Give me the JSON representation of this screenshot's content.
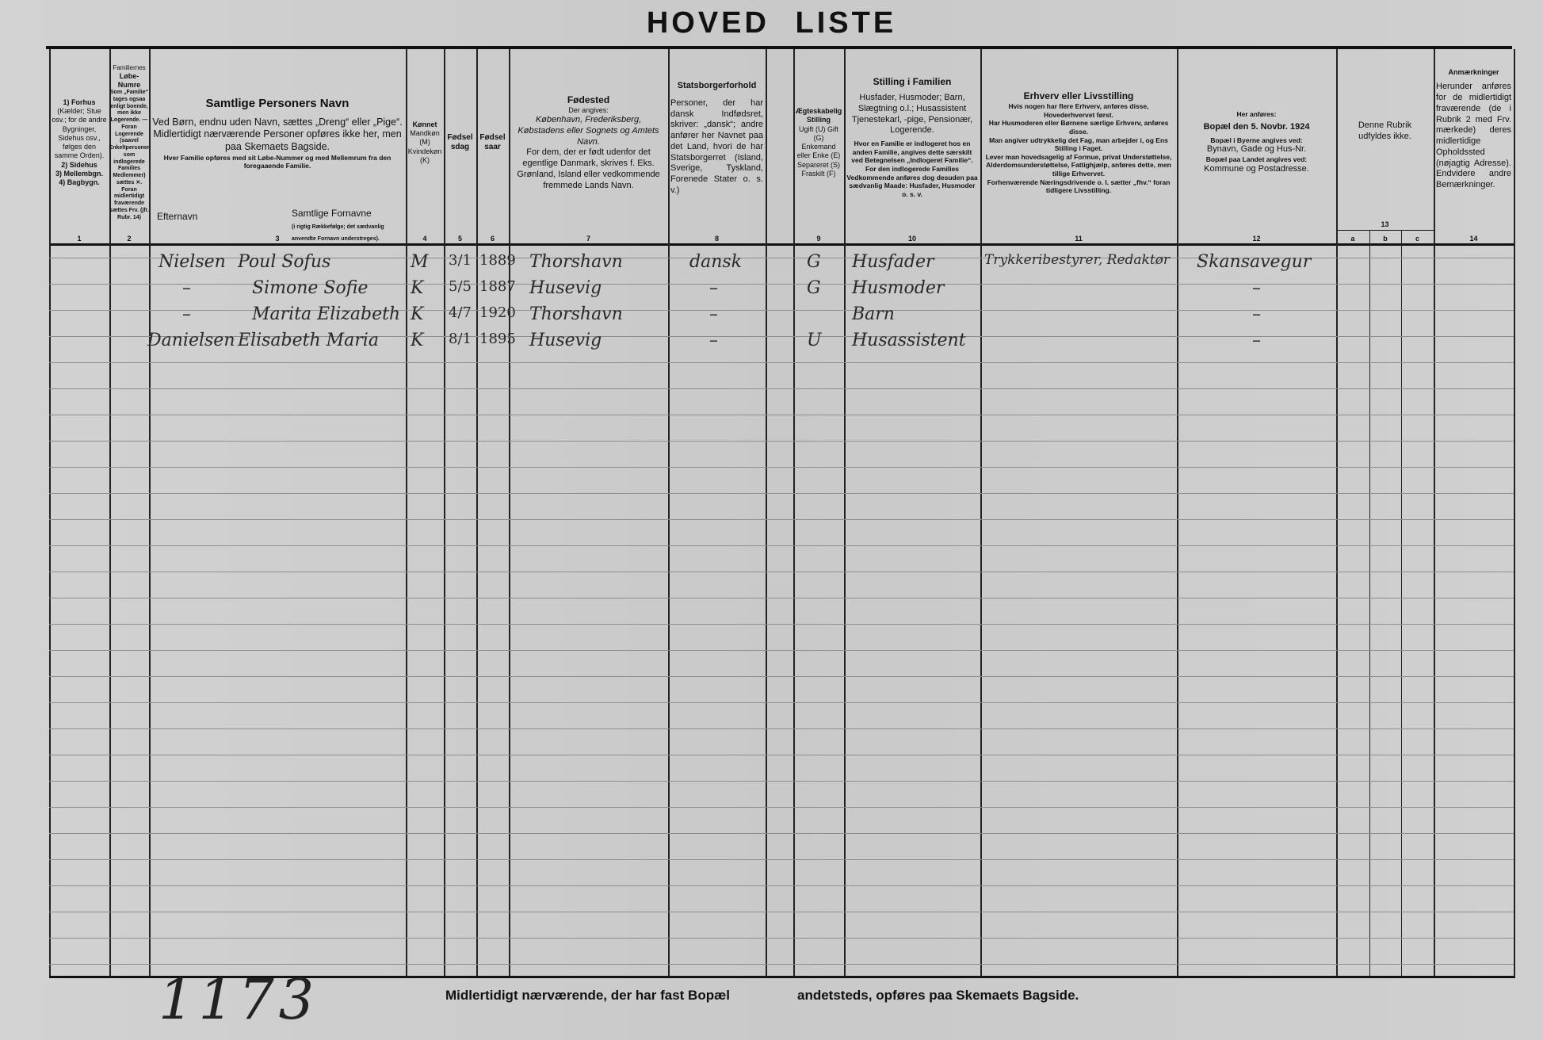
{
  "title": "HOVED LISTE",
  "columns": {
    "c1": {
      "lines": [
        "1) Forhus",
        "(Kælder; Stue osv.; for de andre Bygninger, Sidehus osv., følges den samme Orden).",
        "2) Sidehus",
        "3) Mellembgn.",
        "4) Bagbygn."
      ],
      "num": "1"
    },
    "c2": {
      "head": "Familiernes",
      "title": "Løbe-Numre",
      "text": "Som „Familie“ tages ogsaa enligt boende, men ikke Logerende. — Foran Logerende (saavel Enkeltpersoner som indlogerede Families Medlemmer) sættes ✕. Foran midlertidigt fraværende sættes Frv. (jfr. Rubr. 14)",
      "num": "2"
    },
    "c3": {
      "title": "Samtlige Personers Navn",
      "l1": "Ved Børn, endnu uden Navn, sættes „Dreng“ eller „Pige“.",
      "l2": "Midlertidigt nærværende Personer opføres ikke her, men paa Skemaets Bagside.",
      "l3": "Hver Familie opføres med sit Løbe-Nummer og med Mellemrum fra den foregaaende Familie.",
      "efternavn": "Efternavn",
      "fornavne": "Samtlige Fornavne",
      "fornavne_note": "(i rigtig Rækkefølge; det sædvanlig anvendte Fornavn understreges).",
      "num": "3"
    },
    "c4": {
      "title": "Kønnet",
      "text": "Mandkøn (M) Kvindekøn (K)",
      "num": "4"
    },
    "c5": {
      "title": "Fødselsdag",
      "num": "5"
    },
    "c6": {
      "title": "Fødselsaar",
      "num": "6"
    },
    "c7": {
      "title": "Fødested",
      "l1": "Der angives:",
      "l2": "København, Frederiksberg, Købstadens eller Sognets og Amtets Navn.",
      "l3": "For dem, der er født udenfor det egentlige Danmark, skrives f. Eks. Grønland, Island eller vedkommende fremmede Lands Navn.",
      "num": "7"
    },
    "c8": {
      "title": "Statsborgerforhold",
      "text": "Personer, der har dansk Indfødsret, skriver: „dansk“; andre anfører her Navnet paa det Land, hvori de har Statsborgerret (Island, Sverige, Tyskland, Forenede Stater o. s. v.)",
      "num": "8"
    },
    "c9": {
      "title": "Ægteskabelig Stilling",
      "text": "Ugift (U) Gift (G) Enkemand eller Enke (E) Separeret (S) Fraskilt (F)",
      "num": "9"
    },
    "c10": {
      "title": "Stilling i Familien",
      "l1": "Husfader, Husmoder; Barn, Slægtning o.l.; Husassistent Tjenestekarl, -pige, Pensionær, Logerende.",
      "l2": "Hvor en Familie er indlogeret hos en anden Familie, angives dette særskilt ved Betegnelsen „Indlogeret Familie“. For den indlogerede Families Vedkommende anføres dog desuden paa sædvanlig Maade: Husfader, Husmoder o. s. v.",
      "num": "10"
    },
    "c11": {
      "title": "Erhverv eller Livsstilling",
      "l1": "Hvis nogen har flere Erhverv, anføres disse, Hovederhvervet først.",
      "l2": "Har Husmoderen eller Børnene særlige Erhverv, anføres disse.",
      "l3": "Man angiver udtrykkelig det Fag, man arbejder i, og Ens Stilling i Faget.",
      "l4": "Lever man hovedsagelig af Formue, privat Understøttelse, Alderdomsunderstøttelse, Fattighjælp, anføres dette, men tillige Erhvervet.",
      "l5": "Forhenværende Næringsdrivende o. l. sætter „fhv.“ foran tidligere Livsstilling.",
      "num": "11"
    },
    "c12": {
      "l1": "Her anføres:",
      "title": "Bopæl den 5. Novbr. 1924",
      "l2": "Bopæl i Byerne angives ved:",
      "l3": "Bynavn, Gade og Hus-Nr.",
      "l4": "Bopæl paa Landet angives ved:",
      "l5": "Kommune og Postadresse.",
      "num": "12"
    },
    "c13": {
      "text": "Denne Rubrik udfyldes ikke.",
      "num": "13",
      "a": "a",
      "b": "b",
      "c": "c"
    },
    "c14": {
      "title": "Anmærkninger",
      "text": "Herunder anføres for de midlertidigt fraværende (de i Rubrik 2 med Frv. mærkede) deres midlertidige Opholdssted (nøjagtig Adresse). Endvidere andre Bemærkninger.",
      "num": "14"
    }
  },
  "rows": [
    {
      "efternavn": "Nielsen",
      "fornavne": "Poul Sofus",
      "kon": "M",
      "dag": "3/1",
      "aar": "1889",
      "fodested": "Thorshavn",
      "stats": "dansk",
      "aegt": "G",
      "stilling": "Husfader",
      "erhverv": "Trykkeribestyrer, Redaktør",
      "bopael": "Skansavegur"
    },
    {
      "efternavn": "–",
      "fornavne": "Simone Sofie",
      "kon": "K",
      "dag": "5/5",
      "aar": "1887",
      "fodested": "Husevig",
      "stats": "–",
      "aegt": "G",
      "stilling": "Husmoder",
      "erhverv": "",
      "bopael": "–"
    },
    {
      "efternavn": "–",
      "fornavne": "Marita Elizabeth",
      "kon": "K",
      "dag": "4/7",
      "aar": "1920",
      "fodested": "Thorshavn",
      "stats": "–",
      "aegt": "",
      "stilling": "Barn",
      "erhverv": "",
      "bopael": "–"
    },
    {
      "efternavn": "Danielsen",
      "fornavne": "Elisabeth Maria",
      "kon": "K",
      "dag": "8/1",
      "aar": "1895",
      "fodested": "Husevig",
      "stats": "–",
      "aegt": "U",
      "stilling": "Husassistent",
      "erhverv": "",
      "bopael": "–"
    }
  ],
  "footer": {
    "left": "Midlertidigt nærværende, der har fast Bopæl",
    "right": "andetsteds, opføres paa Skemaets Bagside.",
    "page_number": "1173"
  }
}
